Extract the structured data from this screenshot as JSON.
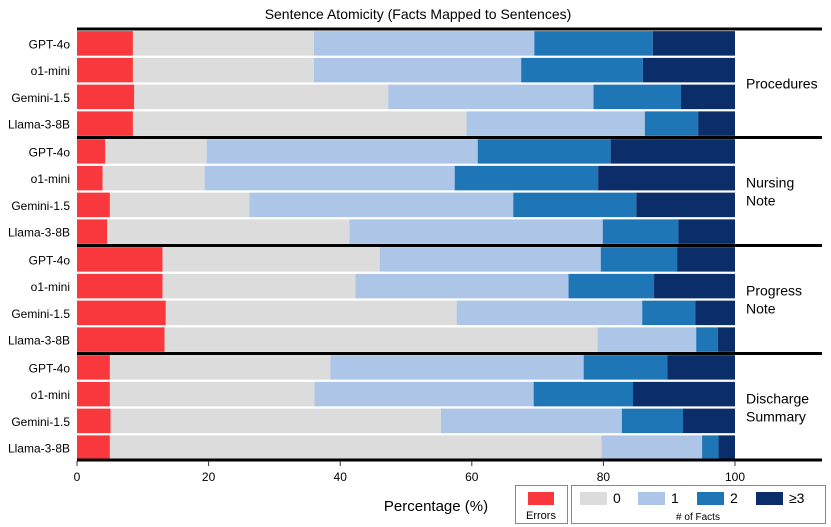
{
  "chart_data": {
    "type": "bar",
    "orientation": "horizontal",
    "stacked": true,
    "title": "Sentence Atomicity (Facts Mapped to Sentences)",
    "xlabel": "Percentage (%)",
    "ylabel": "",
    "xlim": [
      0,
      100
    ],
    "xticks": [
      0,
      20,
      40,
      60,
      80,
      100
    ],
    "legend": {
      "position": "bottom-right",
      "errors_label": "Errors",
      "facts_title": "# of Facts",
      "fact_levels": [
        "0",
        "1",
        "2",
        "≥3"
      ]
    },
    "colors": {
      "errors": "#f8383c",
      "fact_0": "#dcdcdc",
      "fact_1": "#adc6e8",
      "fact_2": "#1f76b7",
      "fact_3plus": "#0b2e6b"
    },
    "segment_keys": [
      "errors",
      "fact_0",
      "fact_1",
      "fact_2",
      "fact_3plus"
    ],
    "groups": [
      {
        "name": "Procedures",
        "models": [
          {
            "model": "GPT-4o",
            "values": [
              8.5,
              27.5,
              33.5,
              18.0,
              12.5
            ]
          },
          {
            "model": "o1-mini",
            "values": [
              8.5,
              27.5,
              31.5,
              18.5,
              14.0
            ]
          },
          {
            "model": "Gemini-1.5",
            "values": [
              8.7,
              38.6,
              31.2,
              13.3,
              8.2
            ]
          },
          {
            "model": "Llama-3-8B",
            "values": [
              8.5,
              50.7,
              27.1,
              8.1,
              5.6
            ]
          }
        ]
      },
      {
        "name": "Nursing Note",
        "models": [
          {
            "model": "GPT-4o",
            "values": [
              4.3,
              15.4,
              41.2,
              20.2,
              18.9
            ]
          },
          {
            "model": "o1-mini",
            "values": [
              3.9,
              15.5,
              38.0,
              21.8,
              20.8
            ]
          },
          {
            "model": "Gemini-1.5",
            "values": [
              5.0,
              21.2,
              40.1,
              18.7,
              15.0
            ]
          },
          {
            "model": "Llama-3-8B",
            "values": [
              4.6,
              36.8,
              38.5,
              11.5,
              8.6
            ]
          }
        ]
      },
      {
        "name": "Progress Note",
        "models": [
          {
            "model": "GPT-4o",
            "values": [
              13.0,
              33.0,
              33.6,
              11.6,
              8.8
            ]
          },
          {
            "model": "o1-mini",
            "values": [
              13.0,
              29.3,
              32.4,
              13.0,
              12.3
            ]
          },
          {
            "model": "Gemini-1.5",
            "values": [
              13.5,
              44.2,
              28.2,
              8.1,
              6.0
            ]
          },
          {
            "model": "Llama-3-8B",
            "values": [
              13.3,
              65.8,
              15.0,
              3.3,
              2.6
            ]
          }
        ]
      },
      {
        "name": "Discharge Summary",
        "models": [
          {
            "model": "GPT-4o",
            "values": [
              5.0,
              33.5,
              38.5,
              12.7,
              10.3
            ]
          },
          {
            "model": "o1-mini",
            "values": [
              5.0,
              31.1,
              33.3,
              15.1,
              15.5
            ]
          },
          {
            "model": "Gemini-1.5",
            "values": [
              5.1,
              50.2,
              27.5,
              9.3,
              7.9
            ]
          },
          {
            "model": "Llama-3-8B",
            "values": [
              5.0,
              74.7,
              15.3,
              2.5,
              2.5
            ]
          }
        ]
      }
    ]
  }
}
